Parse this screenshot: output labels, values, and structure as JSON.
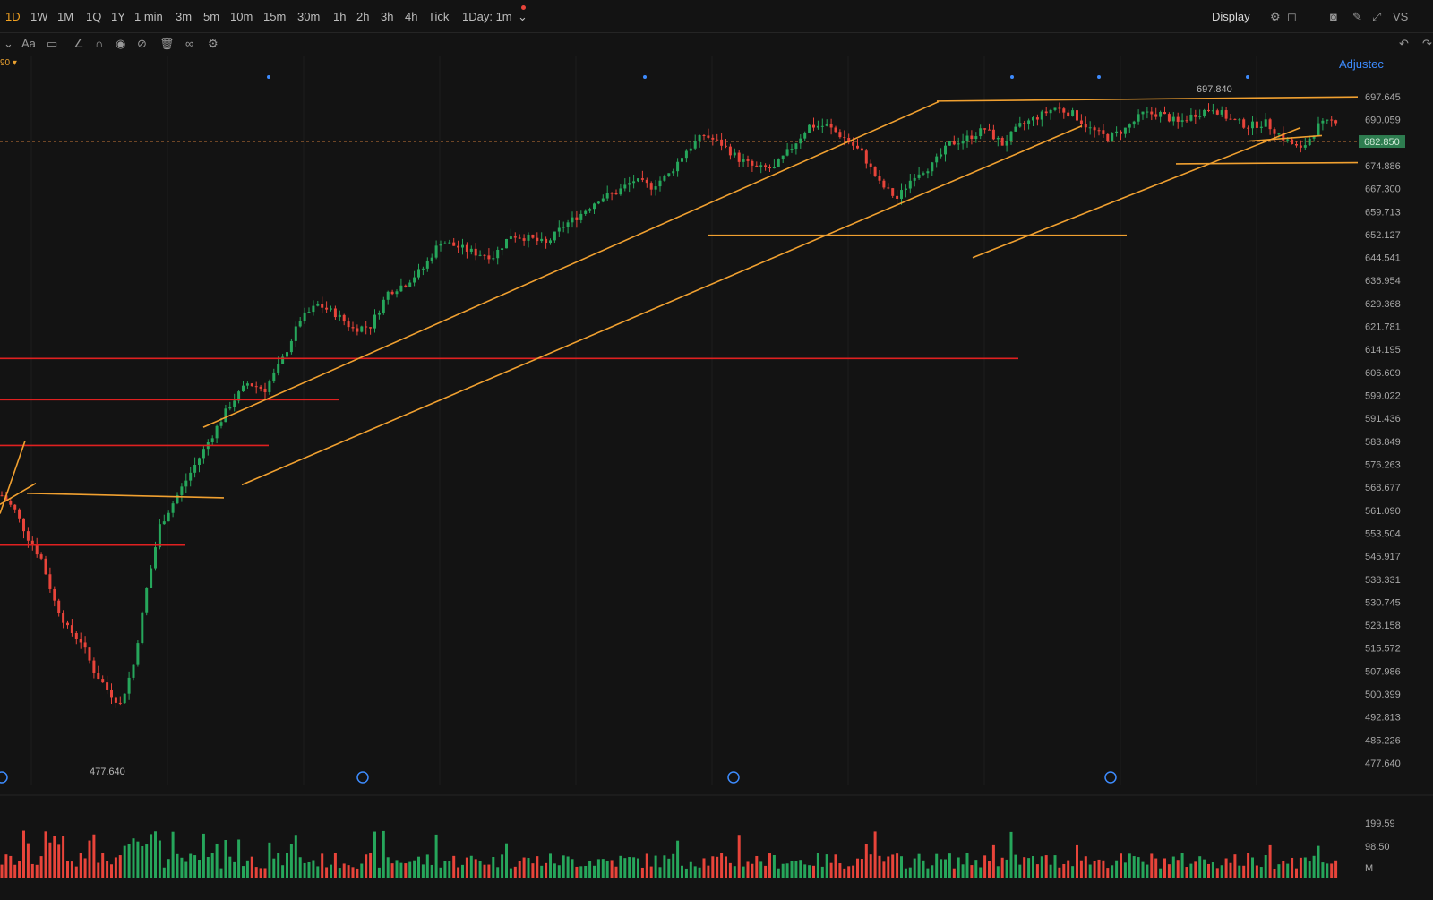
{
  "toolbar": {
    "timeframes": [
      "1D",
      "1W",
      "1M",
      "1Q",
      "1Y",
      "1 min",
      "3m",
      "5m",
      "10m",
      "15m",
      "30m",
      "1h",
      "2h",
      "3h",
      "4h",
      "Tick",
      "1Day: 1m"
    ],
    "active_timeframe": "1D",
    "display_label": "Display",
    "vs_label": "VS",
    "font_tool_label": "Aa"
  },
  "indicator": {
    "label": "90",
    "adjusted_label": "Adjustec"
  },
  "colors": {
    "up": "#26a65b",
    "down": "#e8443a",
    "trendline": "#f0a030",
    "support": "#e02020",
    "background": "#131313",
    "last_price_bg": "#2e7d50"
  },
  "icons": [
    "chevron-down-icon",
    "text-icon",
    "comment-icon",
    "pencil-icon",
    "magnet-icon",
    "eye-icon",
    "hide-icon",
    "trash-icon",
    "link-icon",
    "settings-icon",
    "camera-icon",
    "edit-icon",
    "fullscreen-icon",
    "layout-icon",
    "undo-icon",
    "redo-icon",
    "reset-icon",
    "zoom-out-icon",
    "zoom-in-icon",
    "expand-icon"
  ],
  "chart_data": {
    "type": "candlestick",
    "y_axis_ticks": [
      "697.645",
      "690.059",
      "682.850",
      "674.886",
      "667.300",
      "659.713",
      "652.127",
      "644.541",
      "636.954",
      "629.368",
      "621.781",
      "614.195",
      "606.609",
      "599.022",
      "591.436",
      "583.849",
      "576.263",
      "568.677",
      "561.090",
      "553.504",
      "545.917",
      "538.331",
      "530.745",
      "523.158",
      "515.572",
      "507.986",
      "500.399",
      "492.813",
      "485.226",
      "477.640"
    ],
    "ylim": [
      477.64,
      697.645
    ],
    "last_price": "682.850",
    "high_label": "697.840",
    "low_label": "477.640",
    "close_path": [
      [
        0,
        566
      ],
      [
        3,
        561
      ],
      [
        6,
        552
      ],
      [
        9,
        545
      ],
      [
        12,
        531
      ],
      [
        15,
        522
      ],
      [
        18,
        518
      ],
      [
        21,
        508
      ],
      [
        24,
        502
      ],
      [
        27,
        497
      ],
      [
        30,
        510
      ],
      [
        33,
        535
      ],
      [
        36,
        556
      ],
      [
        40,
        566
      ],
      [
        44,
        576
      ],
      [
        48,
        586
      ],
      [
        52,
        596
      ],
      [
        56,
        603
      ],
      [
        60,
        601
      ],
      [
        64,
        611
      ],
      [
        68,
        624
      ],
      [
        72,
        629
      ],
      [
        76,
        626
      ],
      [
        80,
        621
      ],
      [
        84,
        622
      ],
      [
        88,
        633
      ],
      [
        92,
        636
      ],
      [
        96,
        641
      ],
      [
        100,
        650
      ],
      [
        104,
        648
      ],
      [
        108,
        646
      ],
      [
        112,
        645
      ],
      [
        116,
        652
      ],
      [
        120,
        651
      ],
      [
        124,
        649
      ],
      [
        128,
        655
      ],
      [
        132,
        659
      ],
      [
        136,
        664
      ],
      [
        140,
        666
      ],
      [
        144,
        670
      ],
      [
        148,
        668
      ],
      [
        152,
        672
      ],
      [
        156,
        680
      ],
      [
        160,
        685
      ],
      [
        164,
        682
      ],
      [
        168,
        677
      ],
      [
        172,
        674
      ],
      [
        176,
        674
      ],
      [
        180,
        681
      ],
      [
        184,
        688
      ],
      [
        188,
        688
      ],
      [
        192,
        684
      ],
      [
        196,
        679
      ],
      [
        200,
        669
      ],
      [
        204,
        664
      ],
      [
        208,
        672
      ],
      [
        212,
        675
      ],
      [
        216,
        682
      ],
      [
        220,
        684
      ],
      [
        224,
        687
      ],
      [
        228,
        682
      ],
      [
        232,
        688
      ],
      [
        236,
        691
      ],
      [
        240,
        694
      ],
      [
        244,
        692
      ],
      [
        248,
        687
      ],
      [
        252,
        684
      ],
      [
        256,
        687
      ],
      [
        260,
        692
      ],
      [
        264,
        692
      ],
      [
        268,
        689
      ],
      [
        272,
        692
      ],
      [
        276,
        694
      ],
      [
        280,
        690
      ],
      [
        284,
        688
      ],
      [
        288,
        689
      ],
      [
        292,
        684
      ],
      [
        296,
        680
      ],
      [
        300,
        688
      ],
      [
        304,
        690
      ]
    ],
    "volume_axis_ticks": [
      "199.59",
      "98.50",
      "M"
    ],
    "series": [
      {
        "name": "",
        "note": ""
      }
    ]
  }
}
